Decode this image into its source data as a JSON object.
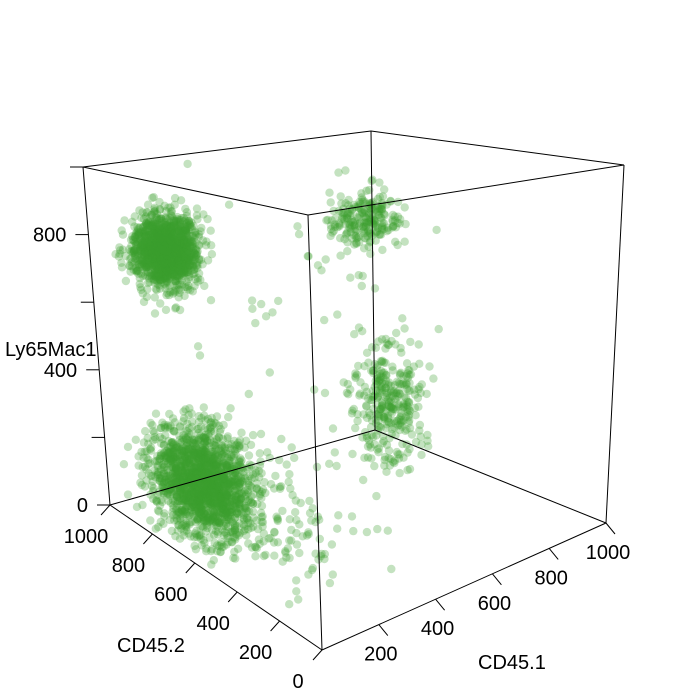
{
  "chart_data": {
    "type": "scatter",
    "projection": "3d-box",
    "title": "",
    "xlabel": "CD45.1",
    "ylabel": "CD45.2",
    "zlabel": "Ly65Mac1",
    "xlim": [
      0,
      1000
    ],
    "ylim": [
      0,
      1000
    ],
    "zlim": [
      0,
      1000
    ],
    "x_ticks": [
      "200",
      "400",
      "600",
      "800",
      "1000"
    ],
    "y_ticks": [
      "0",
      "200",
      "400",
      "600",
      "800",
      "1000"
    ],
    "z_ticks": [
      "0",
      "400",
      "800"
    ],
    "point_color": "#3a9e2f",
    "point_opacity": 0.3,
    "grid": false,
    "legend": "none",
    "clusters": [
      {
        "name": "",
        "n": 1500,
        "x_mean": 150,
        "y_mean": 850,
        "z_mean": 760,
        "x_sd": 45,
        "y_sd": 40,
        "z_sd": 50
      },
      {
        "name": "",
        "n": 1700,
        "x_mean": 120,
        "y_mean": 700,
        "z_mean": 150,
        "x_sd": 60,
        "y_sd": 90,
        "z_sd": 70
      },
      {
        "name": "",
        "n": 220,
        "x_mean": 820,
        "y_mean": 820,
        "z_mean": 760,
        "x_sd": 45,
        "y_sd": 45,
        "z_sd": 45
      },
      {
        "name": "",
        "n": 320,
        "x_mean": 860,
        "y_mean": 780,
        "z_mean": 180,
        "x_sd": 45,
        "y_sd": 60,
        "z_sd": 90
      },
      {
        "name": "",
        "n": 90,
        "x_mean": 150,
        "y_mean": 320,
        "z_mean": 150,
        "x_sd": 90,
        "y_sd": 120,
        "z_sd": 60
      },
      {
        "name": "",
        "n": 55,
        "x_mean": 500,
        "y_mean": 700,
        "z_mean": 600,
        "x_sd": 250,
        "y_sd": 200,
        "z_sd": 250
      }
    ]
  }
}
